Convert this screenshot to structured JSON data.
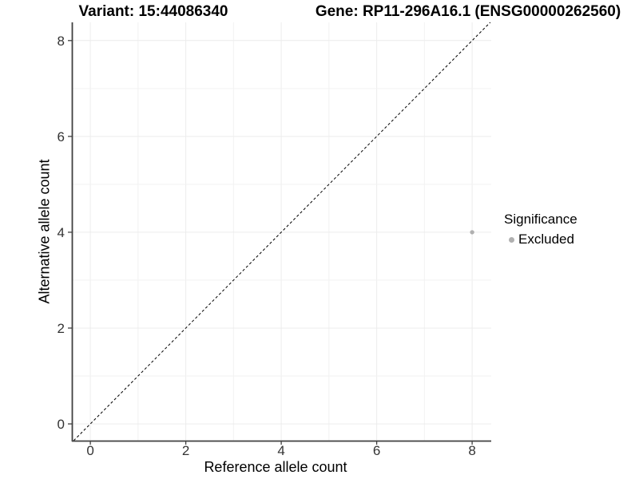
{
  "header": {
    "variant_title": "Variant: 15:44086340",
    "gene_title": "Gene: RP11-296A16.1 (ENSG00000262560)"
  },
  "legend": {
    "title": "Significance",
    "items": [
      {
        "label": "Excluded",
        "color": "#b0b0b0"
      }
    ]
  },
  "chart_data": {
    "type": "scatter",
    "xlabel": "Reference allele count",
    "ylabel": "Alternative allele count",
    "xlim": [
      -0.37,
      8.4
    ],
    "ylim": [
      -0.35,
      8.38
    ],
    "xticks": [
      0,
      2,
      4,
      6,
      8
    ],
    "yticks": [
      0,
      2,
      4,
      6,
      8
    ],
    "grid": "on",
    "grid_major_color": "#ececec",
    "grid_minor_color": "#f2f2f2",
    "axis_color": "#404040",
    "tick_label_color": "#333333",
    "identity_line": {
      "style": "dashed",
      "color": "#000000",
      "dash": "3.3 2.7",
      "slope": 1,
      "intercept": 0
    },
    "legend_position": "right",
    "series": [
      {
        "name": "Excluded",
        "color": "#b0b0b0",
        "point_radius": 2.7,
        "points": [
          {
            "x": 8,
            "y": 4
          }
        ]
      }
    ]
  }
}
